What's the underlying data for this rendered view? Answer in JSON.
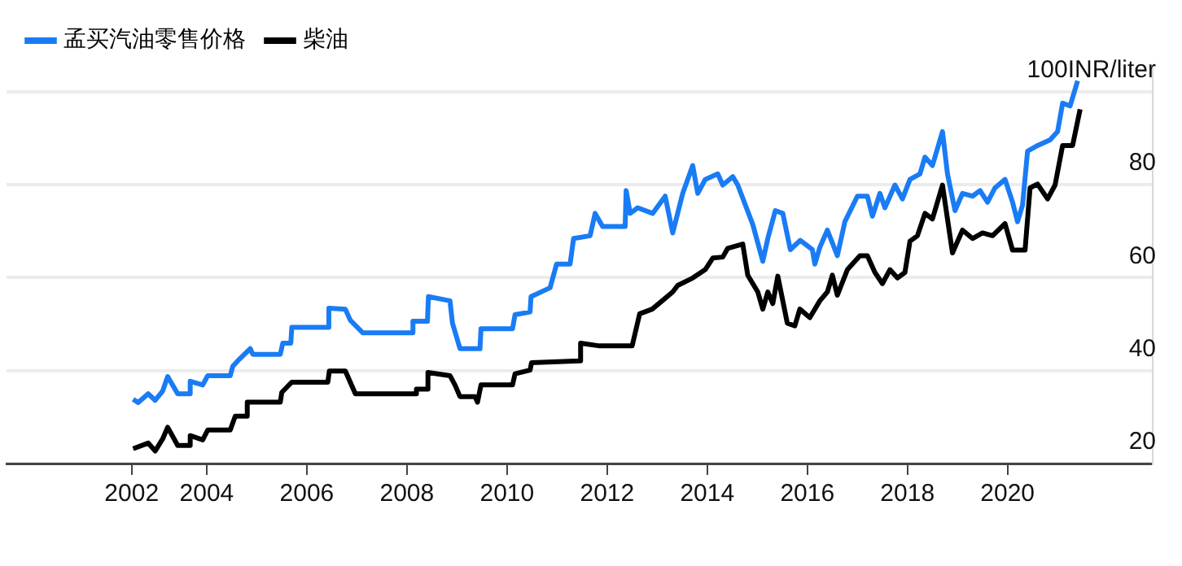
{
  "chart_data": {
    "type": "line",
    "legend": "top left",
    "grid": "y",
    "marker": "none",
    "line_style": "solid",
    "xlim": [
      2000,
      2022.9
    ],
    "ylim": [
      20,
      105
    ],
    "xticks": [
      {
        "value": 2002.5,
        "label": "2002"
      },
      2004,
      2006,
      2008,
      2010,
      2012,
      2014,
      2016,
      2018,
      2020
    ],
    "yticks": [
      20,
      40,
      60,
      80,
      {
        "value": 100,
        "label": "100INR/liter"
      }
    ],
    "series": [
      {
        "name": "孟买汽油零售价格",
        "color": "#1a7cf5",
        "x": [
          2002.53,
          2002.63,
          2002.83,
          2002.97,
          2003.12,
          2003.22,
          2003.42,
          2003.67,
          2003.67,
          2003.92,
          2004.02,
          2004.47,
          2004.52,
          2004.62,
          2004.87,
          2004.92,
          2005.47,
          2005.52,
          2005.68,
          2005.7,
          2006.42,
          2006.44,
          2006.77,
          2006.87,
          2007.12,
          2008.12,
          2008.12,
          2008.41,
          2008.43,
          2008.86,
          2008.91,
          2009.06,
          2009.46,
          2009.48,
          2010.11,
          2010.16,
          2010.46,
          2010.48,
          2010.86,
          2010.99,
          2011.26,
          2011.33,
          2011.66,
          2011.76,
          2011.91,
          2012.36,
          2012.38,
          2012.46,
          2012.61,
          2012.91,
          2013.16,
          2013.31,
          2013.51,
          2013.71,
          2013.81,
          2013.96,
          2014.21,
          2014.31,
          2014.51,
          2014.61,
          2014.91,
          2015.11,
          2015.21,
          2015.36,
          2015.51,
          2015.66,
          2015.86,
          2016.1,
          2016.15,
          2016.25,
          2016.4,
          2016.6,
          2016.75,
          2017.0,
          2017.2,
          2017.3,
          2017.45,
          2017.55,
          2017.75,
          2017.9,
          2018.05,
          2018.25,
          2018.35,
          2018.5,
          2018.7,
          2018.8,
          2018.95,
          2019.1,
          2019.3,
          2019.45,
          2019.6,
          2019.75,
          2019.95,
          2020.1,
          2020.2,
          2020.3,
          2020.4,
          2020.6,
          2020.85,
          2021.0,
          2021.1,
          2021.25,
          2021.4
        ],
        "values": [
          33.8,
          33.1,
          35.0,
          33.6,
          35.6,
          38.7,
          35.0,
          35.0,
          37.7,
          36.9,
          38.9,
          38.9,
          40.9,
          42.1,
          44.7,
          43.5,
          43.5,
          45.9,
          45.9,
          49.3,
          49.3,
          53.4,
          53.2,
          50.8,
          48.1,
          48.1,
          50.6,
          50.6,
          55.9,
          55.0,
          50.2,
          44.7,
          44.7,
          49.0,
          49.0,
          52.0,
          52.6,
          55.9,
          57.8,
          62.9,
          62.9,
          68.4,
          69.0,
          73.8,
          71.0,
          71.0,
          78.7,
          73.8,
          75.0,
          73.8,
          77.5,
          69.6,
          78.1,
          84.1,
          78.1,
          81.1,
          82.3,
          79.9,
          81.7,
          79.9,
          71.4,
          63.5,
          68.4,
          74.4,
          73.8,
          66.0,
          68.0,
          66.0,
          62.9,
          66.5,
          70.2,
          64.7,
          72.0,
          77.5,
          77.5,
          73.2,
          78.1,
          75.0,
          79.9,
          76.9,
          81.1,
          82.3,
          85.9,
          84.1,
          91.4,
          82.3,
          74.4,
          78.1,
          77.5,
          78.7,
          76.2,
          79.3,
          81.1,
          76.2,
          72.0,
          75.6,
          87.2,
          88.4,
          89.6,
          91.4,
          97.5,
          96.9,
          102.3
        ]
      },
      {
        "name": "柴油",
        "color": "#000000",
        "x": [
          2002.53,
          2002.83,
          2002.97,
          2003.12,
          2003.22,
          2003.42,
          2003.67,
          2003.67,
          2003.92,
          2004.02,
          2004.47,
          2004.57,
          2004.79,
          2004.81,
          2005.47,
          2005.5,
          2005.7,
          2006.42,
          2006.45,
          2006.77,
          2006.97,
          2008.17,
          2008.19,
          2008.4,
          2008.42,
          2008.86,
          2008.96,
          2009.06,
          2009.36,
          2009.41,
          2009.48,
          2010.11,
          2010.16,
          2010.46,
          2010.49,
          2011.45,
          2011.47,
          2011.85,
          2012.5,
          2012.65,
          2012.9,
          2013.1,
          2013.31,
          2013.41,
          2013.71,
          2013.96,
          2014.11,
          2014.31,
          2014.41,
          2014.71,
          2014.81,
          2015.01,
          2015.11,
          2015.21,
          2015.31,
          2015.41,
          2015.6,
          2015.75,
          2015.85,
          2016.05,
          2016.25,
          2016.4,
          2016.5,
          2016.6,
          2016.8,
          2017.05,
          2017.2,
          2017.35,
          2017.5,
          2017.65,
          2017.8,
          2017.95,
          2018.05,
          2018.2,
          2018.35,
          2018.5,
          2018.7,
          2018.8,
          2018.9,
          2019.1,
          2019.3,
          2019.5,
          2019.7,
          2019.95,
          2020.1,
          2020.35,
          2020.45,
          2020.6,
          2020.8,
          2020.95,
          2021.1,
          2021.3,
          2021.45
        ],
        "values": [
          23.2,
          24.4,
          22.7,
          25.3,
          27.8,
          23.9,
          23.9,
          26.0,
          25.1,
          27.2,
          27.2,
          30.2,
          30.2,
          33.2,
          33.2,
          35.3,
          37.5,
          37.5,
          39.9,
          39.9,
          35.0,
          35.0,
          36.0,
          36.0,
          39.6,
          38.9,
          36.9,
          34.4,
          34.4,
          33.2,
          36.9,
          36.9,
          39.3,
          40.1,
          41.7,
          42.1,
          45.9,
          45.3,
          45.3,
          52.2,
          53.2,
          55.0,
          56.9,
          58.3,
          59.9,
          61.7,
          64.2,
          64.4,
          66.3,
          67.2,
          60.5,
          56.9,
          53.2,
          56.9,
          54.4,
          60.3,
          50.2,
          49.6,
          53.2,
          51.4,
          55.0,
          56.9,
          60.5,
          56.2,
          61.7,
          64.7,
          64.7,
          61.1,
          58.7,
          61.7,
          59.9,
          61.1,
          67.8,
          69.0,
          73.8,
          72.6,
          79.9,
          72.6,
          65.3,
          70.2,
          68.4,
          69.6,
          69.0,
          71.6,
          65.9,
          65.9,
          79.3,
          80.1,
          76.9,
          79.9,
          88.4,
          88.4,
          96.2
        ]
      }
    ]
  }
}
